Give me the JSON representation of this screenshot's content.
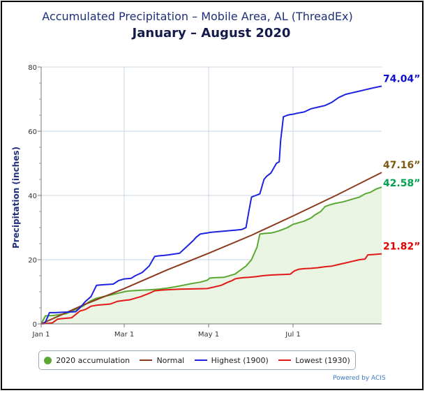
{
  "chart_data": {
    "type": "line",
    "title": "Accumulated Precipitation – Mobile Area, AL (ThreadEx)",
    "subtitle": "January – August 2020",
    "ylabel": "Precipitation (inches)",
    "xlabel": "",
    "ylim": [
      0,
      80
    ],
    "yticks": [
      0,
      20,
      40,
      60,
      80
    ],
    "xlim": [
      0,
      246
    ],
    "xticks": [
      {
        "day": 0,
        "label": "Jan 1"
      },
      {
        "day": 60,
        "label": "Mar 1"
      },
      {
        "day": 121,
        "label": "May 1"
      },
      {
        "day": 182,
        "label": "Jul 1"
      }
    ],
    "grid": true,
    "legend_position": "bottom",
    "series": [
      {
        "name": "2020 accumulation",
        "color": "#5aa832",
        "fill": "#eaf4e2",
        "end_label": "42.58”",
        "label_color": "#00a050",
        "x": [
          0,
          3,
          8,
          12,
          18,
          25,
          30,
          35,
          40,
          45,
          50,
          55,
          58,
          62,
          65,
          68,
          72,
          78,
          85,
          92,
          100,
          108,
          115,
          120,
          122,
          126,
          132,
          140,
          148,
          152,
          156,
          158,
          162,
          166,
          168,
          172,
          175,
          178,
          182,
          186,
          190,
          195,
          198,
          202,
          205,
          208,
          212,
          218,
          222,
          226,
          230,
          234,
          238,
          242,
          246
        ],
        "y": [
          0,
          2.5,
          2.6,
          2.8,
          3.2,
          4.5,
          5.5,
          7,
          8,
          8.5,
          9,
          9.5,
          9.8,
          10.2,
          10.3,
          10.4,
          10.5,
          10.6,
          10.8,
          11.2,
          11.8,
          12.5,
          13,
          13.6,
          14.3,
          14.4,
          14.5,
          15.5,
          18,
          20,
          24,
          28,
          28.2,
          28.3,
          28.5,
          29,
          29.5,
          30,
          31,
          31.5,
          32,
          33,
          34,
          35,
          36.5,
          37,
          37.5,
          38,
          38.5,
          39,
          39.5,
          40.5,
          41,
          42,
          42.58
        ]
      },
      {
        "name": "Normal",
        "color": "#8b3a1e",
        "end_label": "47.16”",
        "label_color": "#7a5a10",
        "x": [
          0,
          30,
          60,
          91,
          121,
          152,
          182,
          213,
          246
        ],
        "y": [
          0,
          5.8,
          11,
          16.8,
          22,
          27.6,
          33.6,
          40,
          47.16
        ]
      },
      {
        "name": "Highest (1900)",
        "color": "#1c22e0",
        "end_label": "74.04”",
        "label_color": "#1010cc",
        "x": [
          0,
          3,
          6,
          10,
          15,
          20,
          25,
          28,
          32,
          36,
          40,
          45,
          52,
          56,
          60,
          65,
          68,
          73,
          78,
          82,
          85,
          88,
          92,
          100,
          105,
          110,
          112,
          115,
          118,
          120,
          122,
          125,
          130,
          135,
          140,
          145,
          148,
          150,
          152,
          155,
          158,
          161,
          163,
          166,
          168,
          170,
          172,
          173,
          175,
          178,
          180,
          182,
          185,
          190,
          195,
          200,
          205,
          210,
          215,
          220,
          225,
          230,
          235,
          240,
          246
        ],
        "y": [
          0,
          0.5,
          3.5,
          3.5,
          3.6,
          3.7,
          3.8,
          5,
          7,
          8.5,
          12,
          12.2,
          12.4,
          13.5,
          14,
          14.2,
          15,
          16,
          18,
          21,
          21.2,
          21.3,
          21.5,
          22,
          24,
          26,
          27,
          28,
          28.2,
          28.3,
          28.5,
          28.6,
          28.8,
          29,
          29.2,
          29.4,
          30,
          35,
          39.5,
          40,
          40.5,
          45,
          46,
          47,
          48.5,
          50,
          50.5,
          57,
          64.5,
          65,
          65.2,
          65.3,
          65.6,
          66,
          67,
          67.5,
          68,
          69,
          70.5,
          71.5,
          72,
          72.5,
          73,
          73.5,
          74.04
        ]
      },
      {
        "name": "Lowest (1930)",
        "color": "#e41818",
        "end_label": "21.82”",
        "label_color": "#e00000",
        "x": [
          0,
          8,
          12,
          16,
          22,
          28,
          32,
          36,
          40,
          45,
          50,
          55,
          60,
          64,
          68,
          72,
          75,
          78,
          82,
          86,
          90,
          95,
          100,
          110,
          120,
          125,
          130,
          135,
          138,
          140,
          142,
          146,
          150,
          155,
          160,
          165,
          170,
          175,
          180,
          183,
          186,
          190,
          195,
          200,
          205,
          210,
          215,
          220,
          225,
          230,
          234,
          236,
          240,
          246
        ],
        "y": [
          0,
          0.3,
          1.5,
          1.7,
          1.9,
          4,
          4.5,
          5.5,
          5.8,
          6,
          6.2,
          7,
          7.3,
          7.5,
          8,
          8.5,
          9,
          9.5,
          10.3,
          10.5,
          10.6,
          10.7,
          10.8,
          10.9,
          11,
          11.5,
          12,
          13,
          13.5,
          14,
          14.2,
          14.4,
          14.5,
          14.7,
          15,
          15.2,
          15.3,
          15.4,
          15.5,
          16.5,
          17,
          17.2,
          17.3,
          17.5,
          17.8,
          18,
          18.5,
          19,
          19.5,
          20,
          20.2,
          21.5,
          21.6,
          21.82
        ]
      }
    ],
    "credit": "Powered by ACIS"
  }
}
